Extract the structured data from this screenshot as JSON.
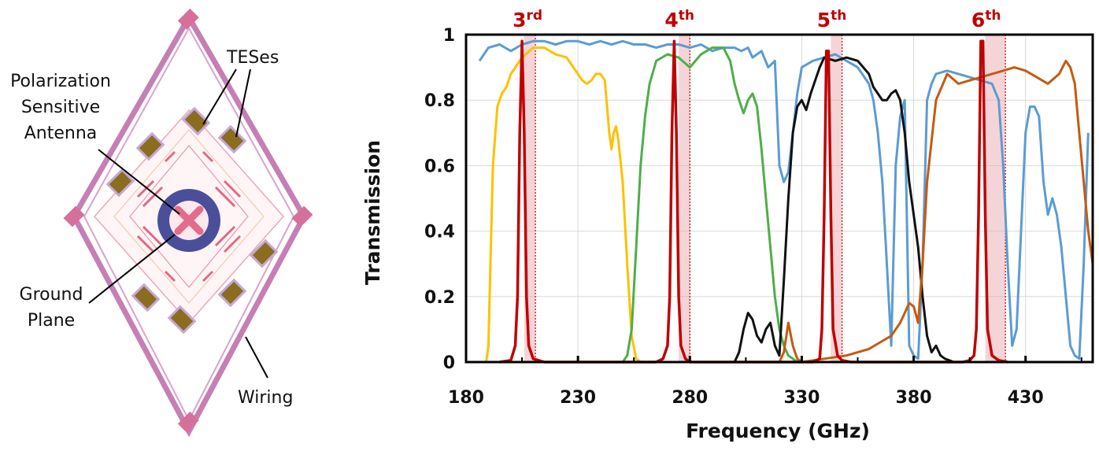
{
  "diagram": {
    "labels": {
      "tes": "TESes",
      "pol1": "Polarization",
      "pol2": "Sensitive",
      "pol3": "Antenna",
      "gnd1": "Ground",
      "gnd2": "Plane",
      "wiring": "Wiring"
    }
  },
  "chart_data": {
    "type": "line",
    "xlabel": "Frequency (GHz)",
    "ylabel": "Transmission",
    "xlim": [
      180,
      460
    ],
    "ylim": [
      0,
      1
    ],
    "xticks": [
      180,
      230,
      280,
      330,
      380,
      430
    ],
    "yticks": [
      {
        "value": 0,
        "label": "0"
      },
      {
        "value": 0.2,
        "label": "0.2"
      },
      {
        "value": 0.4,
        "label": "0.4"
      },
      {
        "value": 0.6,
        "label": "0.6"
      },
      {
        "value": 0.8,
        "label": "0.8"
      },
      {
        "value": 1,
        "label": "1"
      }
    ],
    "grid": true,
    "harmonics": [
      {
        "base": "3",
        "sup": "rd",
        "center": 205,
        "band": [
          206,
          211
        ]
      },
      {
        "base": "4",
        "sup": "th",
        "center": 273,
        "band": [
          275,
          280
        ]
      },
      {
        "base": "5",
        "sup": "th",
        "center": 341,
        "band": [
          343,
          348
        ]
      },
      {
        "base": "6",
        "sup": "th",
        "center": 410,
        "band": [
          412,
          421
        ]
      }
    ],
    "series": [
      {
        "color": "#5b9bd5",
        "x": [
          186,
          190,
          195,
          200,
          205,
          210,
          215,
          220,
          225,
          230,
          235,
          240,
          245,
          250,
          255,
          260,
          265,
          270,
          275,
          280,
          285,
          290,
          295,
          300,
          303,
          306,
          308,
          310,
          312,
          315,
          318,
          320,
          322,
          324,
          326,
          328,
          330,
          335,
          340,
          345,
          350,
          355,
          360,
          362,
          364,
          366,
          368,
          370,
          372,
          374,
          376,
          378,
          380,
          382,
          384,
          386,
          388,
          390,
          395,
          400,
          405,
          410,
          415,
          418,
          420,
          422,
          424,
          426,
          428,
          430,
          432,
          434,
          436,
          438,
          440,
          442,
          444,
          446,
          448,
          450,
          452,
          454,
          456,
          458
        ],
        "y": [
          0.92,
          0.96,
          0.97,
          0.95,
          0.97,
          0.98,
          0.98,
          0.97,
          0.98,
          0.98,
          0.97,
          0.98,
          0.97,
          0.98,
          0.97,
          0.97,
          0.96,
          0.97,
          0.97,
          0.96,
          0.97,
          0.95,
          0.96,
          0.96,
          0.95,
          0.96,
          0.93,
          0.94,
          0.95,
          0.9,
          0.92,
          0.6,
          0.55,
          0.58,
          0.7,
          0.82,
          0.9,
          0.92,
          0.93,
          0.94,
          0.92,
          0.9,
          0.85,
          0.8,
          0.7,
          0.55,
          0.3,
          0.05,
          0.6,
          0.75,
          0.8,
          0.05,
          0.02,
          0.01,
          0.3,
          0.8,
          0.85,
          0.88,
          0.89,
          0.88,
          0.87,
          0.86,
          0.85,
          0.8,
          0.6,
          0.3,
          0.05,
          0.1,
          0.4,
          0.7,
          0.78,
          0.78,
          0.75,
          0.55,
          0.45,
          0.5,
          0.45,
          0.35,
          0.2,
          0.05,
          0.02,
          0.01,
          0.3,
          0.7
        ]
      },
      {
        "color": "#ffc000",
        "x": [
          189,
          190,
          192,
          194,
          196,
          198,
          200,
          205,
          210,
          215,
          220,
          225,
          230,
          232,
          234,
          236,
          238,
          240,
          242,
          244,
          245,
          246,
          247,
          248,
          250,
          252,
          254,
          256,
          258
        ],
        "y": [
          0,
          0.05,
          0.6,
          0.78,
          0.82,
          0.84,
          0.88,
          0.93,
          0.96,
          0.96,
          0.94,
          0.93,
          0.88,
          0.86,
          0.85,
          0.86,
          0.88,
          0.88,
          0.86,
          0.7,
          0.65,
          0.7,
          0.72,
          0.68,
          0.55,
          0.3,
          0.08,
          0.01,
          0
        ]
      },
      {
        "color": "#4eae4a",
        "x": [
          250,
          252,
          254,
          256,
          258,
          260,
          262,
          265,
          270,
          275,
          280,
          285,
          290,
          295,
          298,
          300,
          302,
          304,
          306,
          308,
          310,
          312,
          314,
          316,
          318,
          320,
          322,
          324,
          326,
          328
        ],
        "y": [
          0,
          0.02,
          0.1,
          0.35,
          0.6,
          0.75,
          0.85,
          0.92,
          0.94,
          0.93,
          0.9,
          0.94,
          0.96,
          0.96,
          0.92,
          0.85,
          0.8,
          0.76,
          0.8,
          0.82,
          0.78,
          0.65,
          0.5,
          0.35,
          0.2,
          0.1,
          0.05,
          0.02,
          0.01,
          0
        ]
      },
      {
        "color": "#111111",
        "x": [
          300,
          302,
          304,
          306,
          308,
          310,
          312,
          314,
          316,
          318,
          320,
          322,
          324,
          326,
          328,
          330,
          332,
          334,
          336,
          338,
          340,
          345,
          350,
          355,
          360,
          362,
          364,
          366,
          368,
          370,
          372,
          374,
          376,
          378,
          380,
          382,
          384,
          386,
          388,
          390,
          392,
          394,
          396,
          398
        ],
        "y": [
          0,
          0.03,
          0.1,
          0.15,
          0.13,
          0.08,
          0.06,
          0.1,
          0.12,
          0.05,
          0.02,
          0.25,
          0.5,
          0.7,
          0.78,
          0.8,
          0.77,
          0.82,
          0.86,
          0.9,
          0.93,
          0.92,
          0.93,
          0.92,
          0.88,
          0.84,
          0.82,
          0.8,
          0.8,
          0.82,
          0.83,
          0.8,
          0.7,
          0.55,
          0.45,
          0.35,
          0.2,
          0.08,
          0.03,
          0.05,
          0.02,
          0.01,
          0.005,
          0
        ]
      },
      {
        "color": "#c55a11",
        "x": [
          280,
          290,
          300,
          310,
          320,
          322,
          324,
          326,
          328,
          330,
          340,
          350,
          360,
          365,
          370,
          374,
          376,
          378,
          380,
          382,
          384,
          386,
          390,
          395,
          400,
          405,
          410,
          415,
          420,
          425,
          430,
          435,
          440,
          445,
          448,
          450,
          452,
          454,
          456,
          458,
          460
        ],
        "y": [
          0,
          0,
          0,
          0,
          0,
          0.03,
          0.12,
          0.05,
          0.01,
          0,
          0.01,
          0.02,
          0.04,
          0.06,
          0.08,
          0.12,
          0.15,
          0.18,
          0.17,
          0.12,
          0.3,
          0.55,
          0.8,
          0.88,
          0.85,
          0.86,
          0.87,
          0.88,
          0.89,
          0.9,
          0.89,
          0.87,
          0.85,
          0.88,
          0.92,
          0.9,
          0.85,
          0.7,
          0.55,
          0.4,
          0.3
        ]
      },
      {
        "color": "#c00000",
        "x": [
          195,
          200,
          202,
          203,
          204,
          205,
          206,
          207,
          208,
          210,
          215,
          220,
          255,
          265,
          268,
          270,
          271,
          272,
          273,
          274,
          275,
          276,
          278,
          280,
          285,
          290,
          330,
          335,
          338,
          339,
          340,
          341,
          342,
          343,
          344,
          346,
          348,
          352,
          395,
          402,
          405,
          407,
          408,
          409,
          410,
          411,
          412,
          413,
          415,
          418,
          422
        ],
        "y": [
          0,
          0.005,
          0.05,
          0.2,
          0.7,
          0.98,
          0.7,
          0.2,
          0.05,
          0.01,
          0,
          0,
          0,
          0,
          0.01,
          0.05,
          0.2,
          0.7,
          0.98,
          0.7,
          0.2,
          0.05,
          0.01,
          0,
          0,
          0,
          0,
          0,
          0.01,
          0.1,
          0.45,
          0.95,
          0.95,
          0.45,
          0.1,
          0.02,
          0.005,
          0,
          0,
          0,
          0.005,
          0.02,
          0.1,
          0.45,
          0.98,
          0.98,
          0.45,
          0.1,
          0.02,
          0.005,
          0
        ]
      }
    ]
  }
}
